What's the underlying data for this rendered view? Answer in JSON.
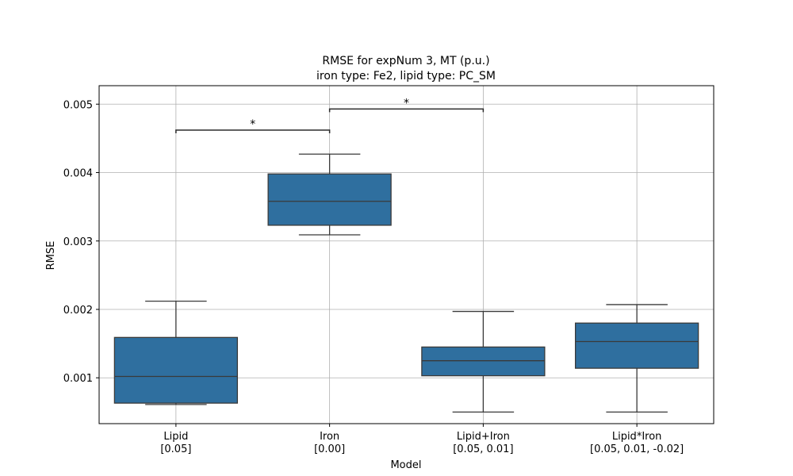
{
  "chart_data": {
    "type": "box",
    "title": [
      "RMSE for expNum 3, MT (p.u.)",
      "iron type: Fe2, lipid type: PC_SM"
    ],
    "xlabel": "Model",
    "ylabel": "RMSE",
    "ylim": [
      0.00033,
      0.00527
    ],
    "yticks": [
      0.001,
      0.002,
      0.003,
      0.004,
      0.005
    ],
    "ytick_labels": [
      "0.001",
      "0.002",
      "0.003",
      "0.004",
      "0.005"
    ],
    "grid": true,
    "box_color": "#2f6f9f",
    "categories": [
      {
        "name": "Lipid",
        "params": "[0.05]"
      },
      {
        "name": "Iron",
        "params": "[0.00]"
      },
      {
        "name": "Lipid+Iron",
        "params": "[0.05, 0.01]"
      },
      {
        "name": "Lipid*Iron",
        "params": "[0.05, 0.01, -0.02]"
      }
    ],
    "boxes": [
      {
        "whislo": 0.00061,
        "q1": 0.00063,
        "med": 0.00102,
        "q3": 0.00159,
        "whishi": 0.00212
      },
      {
        "whislo": 0.00309,
        "q1": 0.00323,
        "med": 0.00358,
        "q3": 0.00398,
        "whishi": 0.00427
      },
      {
        "whislo": 0.0005,
        "q1": 0.00103,
        "med": 0.00125,
        "q3": 0.00145,
        "whishi": 0.00197
      },
      {
        "whislo": 0.0005,
        "q1": 0.00114,
        "med": 0.00153,
        "q3": 0.0018,
        "whishi": 0.00207
      }
    ],
    "significance": [
      {
        "from": 0,
        "to": 1,
        "y": 0.00462,
        "label": "*"
      },
      {
        "from": 1,
        "to": 2,
        "y": 0.00493,
        "label": "*"
      }
    ]
  }
}
